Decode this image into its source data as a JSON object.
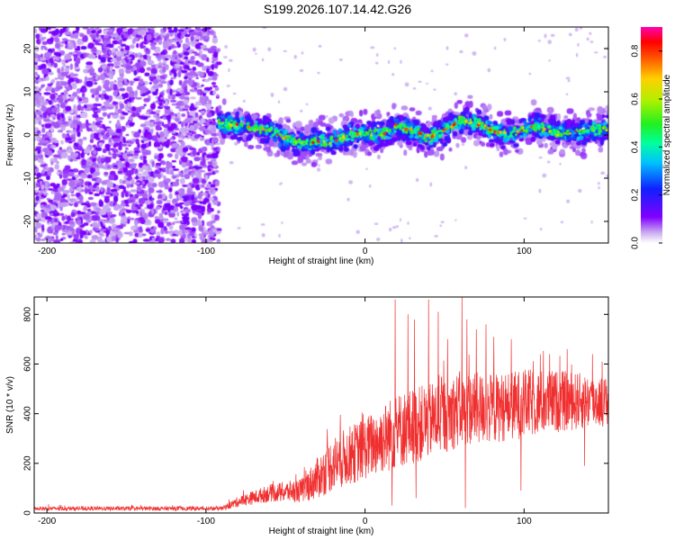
{
  "title": "S199.2026.107.14.42.G26",
  "chart_data": [
    {
      "type": "heatmap",
      "title": "S199.2026.107.14.42.G26",
      "xlabel": "Height of straight line (km)",
      "ylabel": "Frequency (Hz)",
      "xlim": [
        -208,
        153
      ],
      "ylim": [
        -25,
        25
      ],
      "xticks": [
        -200,
        -100,
        0,
        100
      ],
      "xtick_labels": [
        "-200",
        "-100",
        "0",
        "100"
      ],
      "yticks": [
        -20,
        -10,
        0,
        10,
        20
      ],
      "ytick_labels": [
        "-20",
        "-10",
        "0",
        "10",
        "20"
      ],
      "colorbar": {
        "label": "Normalized spectral amplitude",
        "range": [
          0,
          0.9
        ],
        "ticks": [
          0,
          0.2,
          0.4,
          0.6,
          0.8
        ],
        "tick_labels": [
          "0.0",
          "0.2",
          "0.4",
          "0.6",
          "0.8"
        ]
      },
      "noise_region_end_km": -92,
      "signal_centerline": [
        {
          "x": -92,
          "y": 3
        },
        {
          "x": -80,
          "y": 2
        },
        {
          "x": -70,
          "y": 1.5
        },
        {
          "x": -60,
          "y": 1
        },
        {
          "x": -50,
          "y": -1
        },
        {
          "x": -40,
          "y": -2
        },
        {
          "x": -30,
          "y": -1.5
        },
        {
          "x": -20,
          "y": -1.5
        },
        {
          "x": -10,
          "y": 0
        },
        {
          "x": 0,
          "y": 0.5
        },
        {
          "x": 10,
          "y": 0
        },
        {
          "x": 20,
          "y": 2
        },
        {
          "x": 30,
          "y": 1
        },
        {
          "x": 40,
          "y": -0.5
        },
        {
          "x": 50,
          "y": 1
        },
        {
          "x": 60,
          "y": 3.5
        },
        {
          "x": 70,
          "y": 3
        },
        {
          "x": 80,
          "y": 1
        },
        {
          "x": 90,
          "y": 0
        },
        {
          "x": 100,
          "y": 1.5
        },
        {
          "x": 110,
          "y": 2
        },
        {
          "x": 120,
          "y": 0.5
        },
        {
          "x": 130,
          "y": 0.5
        },
        {
          "x": 140,
          "y": 1
        },
        {
          "x": 153,
          "y": 1.5
        }
      ]
    },
    {
      "type": "line",
      "xlabel": "Height of straight line (km)",
      "ylabel": "SNR (10 * v/v)",
      "xlim": [
        -208,
        153
      ],
      "ylim": [
        0,
        870
      ],
      "xticks": [
        -200,
        -100,
        0,
        100
      ],
      "xtick_labels": [
        "-200",
        "-100",
        "0",
        "100"
      ],
      "yticks": [
        0,
        200,
        400,
        600,
        800
      ],
      "ytick_labels": [
        "0",
        "200",
        "400",
        "600",
        "800"
      ],
      "color": "#f03030",
      "envelope": [
        {
          "x": -208,
          "mean": 18,
          "noise": 6
        },
        {
          "x": -90,
          "mean": 18,
          "noise": 6
        },
        {
          "x": -80,
          "mean": 45,
          "noise": 15
        },
        {
          "x": -60,
          "mean": 80,
          "noise": 25
        },
        {
          "x": -40,
          "mean": 90,
          "noise": 35
        },
        {
          "x": -30,
          "mean": 140,
          "noise": 60
        },
        {
          "x": -20,
          "mean": 200,
          "noise": 80
        },
        {
          "x": 0,
          "mean": 260,
          "noise": 90
        },
        {
          "x": 20,
          "mean": 330,
          "noise": 110
        },
        {
          "x": 40,
          "mean": 370,
          "noise": 110
        },
        {
          "x": 60,
          "mean": 420,
          "noise": 110
        },
        {
          "x": 80,
          "mean": 420,
          "noise": 100
        },
        {
          "x": 100,
          "mean": 440,
          "noise": 100
        },
        {
          "x": 120,
          "mean": 450,
          "noise": 90
        },
        {
          "x": 140,
          "mean": 450,
          "noise": 80
        },
        {
          "x": 153,
          "mean": 450,
          "noise": 70
        }
      ],
      "spikes": [
        {
          "x": 17,
          "y": 760
        },
        {
          "x": 19,
          "y": 860
        },
        {
          "x": 27,
          "y": 800
        },
        {
          "x": 31,
          "y": 780
        },
        {
          "x": 40,
          "y": 860
        },
        {
          "x": 46,
          "y": 810
        },
        {
          "x": 52,
          "y": 700
        },
        {
          "x": 61,
          "y": 870
        },
        {
          "x": 64,
          "y": 780
        },
        {
          "x": 70,
          "y": 740
        },
        {
          "x": 76,
          "y": 760
        },
        {
          "x": 81,
          "y": 710
        },
        {
          "x": 92,
          "y": 700
        },
        {
          "x": 116,
          "y": 640
        },
        {
          "x": 127,
          "y": 660
        },
        {
          "x": 143,
          "y": 640
        }
      ],
      "dips": [
        {
          "x": 17,
          "y": 30
        },
        {
          "x": 32,
          "y": 60
        },
        {
          "x": 63,
          "y": 20
        },
        {
          "x": 98,
          "y": 90
        },
        {
          "x": 138,
          "y": 190
        }
      ]
    }
  ]
}
